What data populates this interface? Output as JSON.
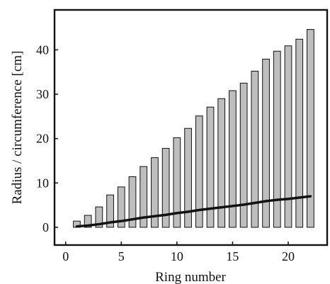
{
  "chart_data": {
    "type": "bar",
    "title": "",
    "xlabel": "Ring number",
    "ylabel": "Radius / circumference [cm]",
    "xlim": [
      -1,
      23.5
    ],
    "ylim": [
      -4,
      49
    ],
    "xticks": [
      0,
      5,
      10,
      15,
      20
    ],
    "yticks": [
      0,
      10,
      20,
      30,
      40
    ],
    "grid": false,
    "legend": "none",
    "series": [
      {
        "type": "bar",
        "x": [
          1,
          2,
          3,
          4,
          5,
          6,
          7,
          8,
          9,
          10,
          11,
          12,
          13,
          14,
          15,
          16,
          17,
          18,
          19,
          20,
          21,
          22
        ],
        "values": [
          1.4,
          2.7,
          4.6,
          7.3,
          9.1,
          11.4,
          13.7,
          15.7,
          17.8,
          20.2,
          22.3,
          25.1,
          27.1,
          29.0,
          30.8,
          32.5,
          35.2,
          37.9,
          39.7,
          40.9,
          42.4,
          44.6
        ]
      },
      {
        "type": "line",
        "x": [
          1,
          2,
          3,
          4,
          5,
          6,
          7,
          8,
          9,
          10,
          11,
          12,
          13,
          14,
          15,
          16,
          17,
          18,
          19,
          20,
          21,
          22
        ],
        "values": [
          0.2,
          0.4,
          0.7,
          1.1,
          1.4,
          1.8,
          2.2,
          2.5,
          2.8,
          3.2,
          3.5,
          3.9,
          4.2,
          4.5,
          4.8,
          5.1,
          5.5,
          5.9,
          6.2,
          6.4,
          6.7,
          7.0
        ]
      }
    ],
    "colors": {
      "bar_fill": "#bebebe",
      "bar_edge": "#111111",
      "line": "#111111"
    }
  }
}
